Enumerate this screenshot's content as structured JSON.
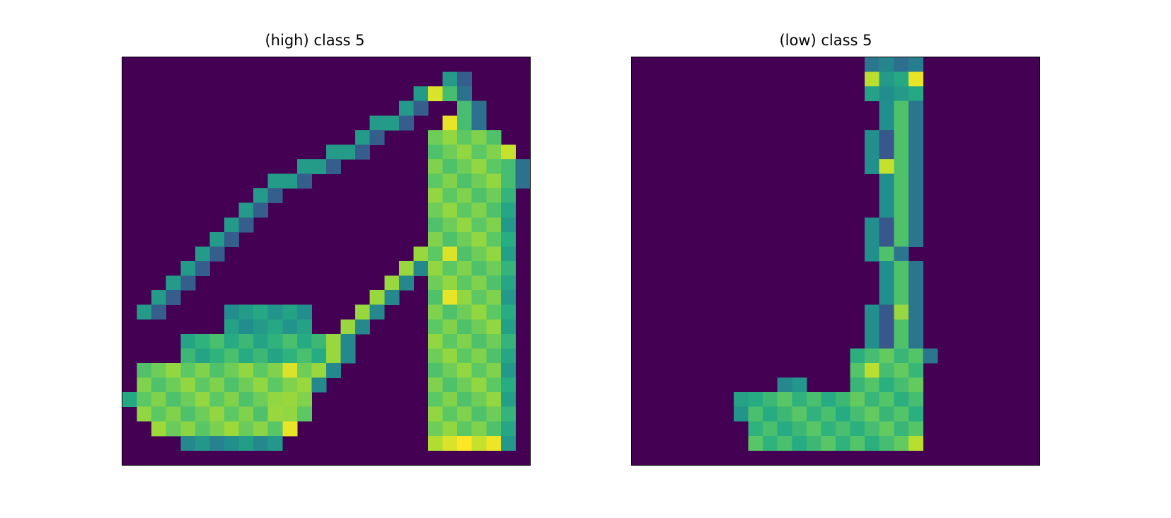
{
  "figure": {
    "panels": [
      {
        "title": "(high) class 5"
      },
      {
        "title": "(low) class 5"
      }
    ]
  },
  "colormap": "viridis",
  "grid_size": 28,
  "images": [
    {
      "name": "high",
      "shapes": [
        {
          "type": "line",
          "points": [
            [
              22,
              1
            ],
            [
              19,
              3
            ],
            [
              16,
              5
            ],
            [
              14,
              6
            ],
            [
              12,
              7
            ],
            [
              10,
              8
            ],
            [
              9,
              9
            ],
            [
              8,
              10
            ],
            [
              7,
              11
            ],
            [
              6,
              12
            ],
            [
              5,
              13
            ],
            [
              4,
              14
            ],
            [
              3,
              15
            ],
            [
              2,
              16
            ],
            [
              1,
              17
            ]
          ],
          "v": 0.55
        },
        {
          "type": "line",
          "points": [
            [
              22,
              2
            ],
            [
              23,
              4
            ],
            [
              25,
              6
            ],
            [
              26,
              8
            ]
          ],
          "v": 0.7
        },
        {
          "type": "rect",
          "x0": 21,
          "y0": 5,
          "x1": 26,
          "y1": 27,
          "v": 0.78
        },
        {
          "type": "rect",
          "x0": 26,
          "y0": 7,
          "x1": 27,
          "y1": 27,
          "v": 0.6
        },
        {
          "type": "line",
          "points": [
            [
              20,
              13
            ],
            [
              18,
              15
            ],
            [
              16,
              17
            ],
            [
              14,
              19
            ],
            [
              13,
              21
            ],
            [
              11,
              23
            ],
            [
              10,
              24
            ]
          ],
          "v": 0.85
        },
        {
          "type": "rect",
          "x0": 7,
          "y0": 17,
          "x1": 13,
          "y1": 19,
          "v": 0.55
        },
        {
          "type": "rect",
          "x0": 4,
          "y0": 19,
          "x1": 14,
          "y1": 21,
          "v": 0.65
        },
        {
          "type": "rect",
          "x0": 1,
          "y0": 21,
          "x1": 13,
          "y1": 25,
          "v": 0.78
        },
        {
          "type": "rect",
          "x0": 0,
          "y0": 23,
          "x1": 2,
          "y1": 24,
          "v": 0.55
        },
        {
          "type": "rect",
          "x0": 2,
          "y0": 25,
          "x1": 12,
          "y1": 26,
          "v": 0.8
        },
        {
          "type": "rect",
          "x0": 4,
          "y0": 26,
          "x1": 11,
          "y1": 27,
          "v": 0.5
        },
        {
          "type": "rect",
          "x0": 21,
          "y0": 26,
          "x1": 26,
          "y1": 27,
          "v": 0.95
        },
        {
          "type": "cell",
          "x": 21,
          "y": 2,
          "v": 0.95
        },
        {
          "type": "cell",
          "x": 22,
          "y": 4,
          "v": 0.97
        },
        {
          "type": "cell",
          "x": 26,
          "y": 6,
          "v": 0.92
        },
        {
          "type": "cell",
          "x": 22,
          "y": 13,
          "v": 0.95
        },
        {
          "type": "cell",
          "x": 22,
          "y": 16,
          "v": 0.97
        },
        {
          "type": "cell",
          "x": 11,
          "y": 21,
          "v": 0.95
        },
        {
          "type": "cell",
          "x": 11,
          "y": 25,
          "v": 0.97
        }
      ]
    },
    {
      "name": "low",
      "shapes": [
        {
          "type": "rect",
          "x0": 16,
          "y0": 0,
          "x1": 20,
          "y1": 1,
          "v": 0.4
        },
        {
          "type": "rect",
          "x0": 16,
          "y0": 1,
          "x1": 20,
          "y1": 3,
          "v": 0.55
        },
        {
          "type": "line",
          "points": [
            [
              17,
              3
            ],
            [
              16,
              5
            ],
            [
              16,
              7
            ],
            [
              17,
              9
            ],
            [
              16,
              11
            ],
            [
              16,
              13
            ],
            [
              17,
              15
            ],
            [
              16,
              17
            ],
            [
              16,
              19
            ],
            [
              15,
              20
            ]
          ],
          "v": 0.5
        },
        {
          "type": "line",
          "points": [
            [
              18,
              3
            ],
            [
              18,
              5
            ],
            [
              18,
              7
            ],
            [
              18,
              9
            ],
            [
              18,
              11
            ],
            [
              17,
              13
            ],
            [
              18,
              15
            ],
            [
              18,
              17
            ],
            [
              18,
              19
            ],
            [
              19,
              20
            ]
          ],
          "v": 0.72
        },
        {
          "type": "rect",
          "x0": 15,
          "y0": 20,
          "x1": 20,
          "y1": 27,
          "v": 0.7
        },
        {
          "type": "rect",
          "x0": 8,
          "y0": 23,
          "x1": 15,
          "y1": 27,
          "v": 0.68
        },
        {
          "type": "rect",
          "x0": 10,
          "y0": 22,
          "x1": 12,
          "y1": 23,
          "v": 0.5
        },
        {
          "type": "rect",
          "x0": 7,
          "y0": 23,
          "x1": 8,
          "y1": 25,
          "v": 0.55
        },
        {
          "type": "cell",
          "x": 19,
          "y": 1,
          "v": 0.97
        },
        {
          "type": "cell",
          "x": 16,
          "y": 1,
          "v": 0.9
        },
        {
          "type": "cell",
          "x": 17,
          "y": 7,
          "v": 0.92
        },
        {
          "type": "cell",
          "x": 18,
          "y": 17,
          "v": 0.85
        },
        {
          "type": "cell",
          "x": 16,
          "y": 21,
          "v": 0.9
        },
        {
          "type": "cell",
          "x": 19,
          "y": 26,
          "v": 0.9
        }
      ]
    }
  ]
}
